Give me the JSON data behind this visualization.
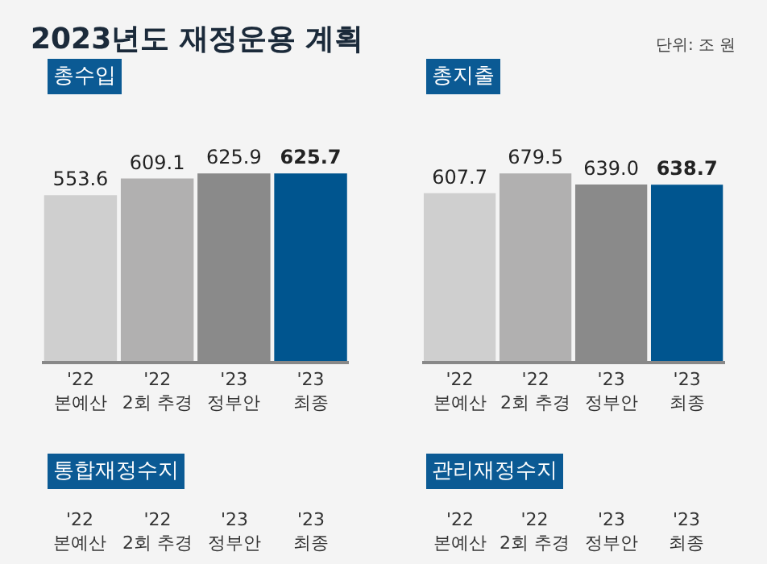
{
  "chart_data": [
    {
      "type": "bar",
      "title": "총수입",
      "categories": [
        "'22\n본예산",
        "'22\n2회 추경",
        "'23\n정부안",
        "'23\n최종"
      ],
      "values": [
        553.6,
        609.1,
        625.9,
        625.7
      ],
      "value_labels": [
        "553.6",
        "609.1",
        "625.9",
        "625.7"
      ],
      "colors": [
        "#cfcfcf",
        "#b1b0b0",
        "#8a8a8a",
        "#00558f"
      ],
      "annotations": [
        "2023년도 재정운용 계획",
        "단위: 조 원"
      ]
    },
    {
      "type": "bar",
      "title": "총지출",
      "categories": [
        "'22\n본예산",
        "'22\n2회 추경",
        "'23\n정부안",
        "'23\n최종"
      ],
      "values": [
        607.7,
        679.5,
        639.0,
        638.7
      ],
      "value_labels": [
        "607.7",
        "679.5",
        "639.0",
        "638.7"
      ],
      "colors": [
        "#cfcfcf",
        "#b1b0b0",
        "#8a8a8a",
        "#00558f"
      ]
    },
    {
      "type": "other",
      "title": "통합재정수지",
      "categories": [
        "'22\n본예산",
        "'22\n2회 추경",
        "'23\n정부안",
        "'23\n최종"
      ]
    },
    {
      "type": "other",
      "title": "관리재정수지",
      "categories": [
        "'22\n본예산",
        "'22\n2회 추경",
        "'23\n정부안",
        "'23\n최종"
      ]
    }
  ]
}
